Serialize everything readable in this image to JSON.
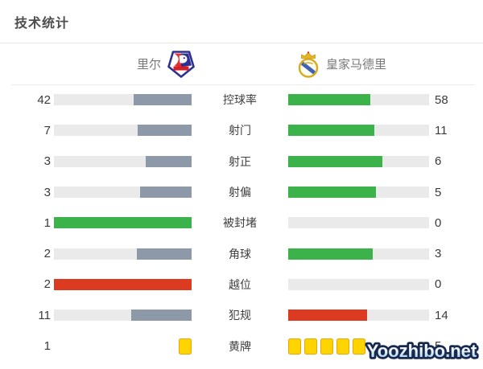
{
  "title": "技术统计",
  "header": {
    "home_team": "里尔",
    "away_team": "皇家马德里"
  },
  "watermark": "Yoozhibo.net",
  "colors": {
    "green": "#3bb24a",
    "red": "#dc3a21",
    "slate": "#8d99a8",
    "track": "#eaeaea",
    "yellow_card": "#ffd400",
    "yellow_card_border": "#e5a90b"
  },
  "chart_data": {
    "type": "bar",
    "title": "技术统计",
    "orientation": "horizontal-paired",
    "categories": [
      "控球率",
      "射门",
      "射正",
      "射偏",
      "被封堵",
      "角球",
      "越位",
      "犯规",
      "黄牌"
    ],
    "series": [
      {
        "name": "里尔",
        "values": [
          42,
          7,
          3,
          3,
          1,
          2,
          2,
          11,
          1
        ]
      },
      {
        "name": "皇家马德里",
        "values": [
          58,
          11,
          6,
          5,
          0,
          3,
          0,
          14,
          5
        ]
      }
    ],
    "bar_fill_rule": "fill width = value / (home + away) of own track",
    "notes": "黄牌 row rendered as yellow card glyphs instead of bars; higher value side colored green (red for 越位/犯规), lower side slate gray",
    "legend_position": "top"
  },
  "stats": {
    "rows": [
      {
        "label": "控球率",
        "type": "bar",
        "home": {
          "value": "42",
          "pct": 42,
          "color": "slate"
        },
        "away": {
          "value": "58",
          "pct": 58,
          "color": "green"
        }
      },
      {
        "label": "射门",
        "type": "bar",
        "home": {
          "value": "7",
          "pct": 38.9,
          "color": "slate"
        },
        "away": {
          "value": "11",
          "pct": 61.1,
          "color": "green"
        }
      },
      {
        "label": "射正",
        "type": "bar",
        "home": {
          "value": "3",
          "pct": 33.3,
          "color": "slate"
        },
        "away": {
          "value": "6",
          "pct": 66.7,
          "color": "green"
        }
      },
      {
        "label": "射偏",
        "type": "bar",
        "home": {
          "value": "3",
          "pct": 37.5,
          "color": "slate"
        },
        "away": {
          "value": "5",
          "pct": 62.5,
          "color": "green"
        }
      },
      {
        "label": "被封堵",
        "type": "bar",
        "home": {
          "value": "1",
          "pct": 100,
          "color": "green"
        },
        "away": {
          "value": "0",
          "pct": 0,
          "color": "none"
        }
      },
      {
        "label": "角球",
        "type": "bar",
        "home": {
          "value": "2",
          "pct": 40,
          "color": "slate"
        },
        "away": {
          "value": "3",
          "pct": 60,
          "color": "green"
        }
      },
      {
        "label": "越位",
        "type": "bar",
        "home": {
          "value": "2",
          "pct": 100,
          "color": "red"
        },
        "away": {
          "value": "0",
          "pct": 0,
          "color": "none"
        }
      },
      {
        "label": "犯规",
        "type": "bar",
        "home": {
          "value": "11",
          "pct": 44,
          "color": "slate"
        },
        "away": {
          "value": "14",
          "pct": 56,
          "color": "red"
        }
      },
      {
        "label": "黄牌",
        "type": "cards",
        "home": {
          "value": "1",
          "cards": 1
        },
        "away": {
          "value": "5",
          "cards": 5
        }
      }
    ]
  }
}
